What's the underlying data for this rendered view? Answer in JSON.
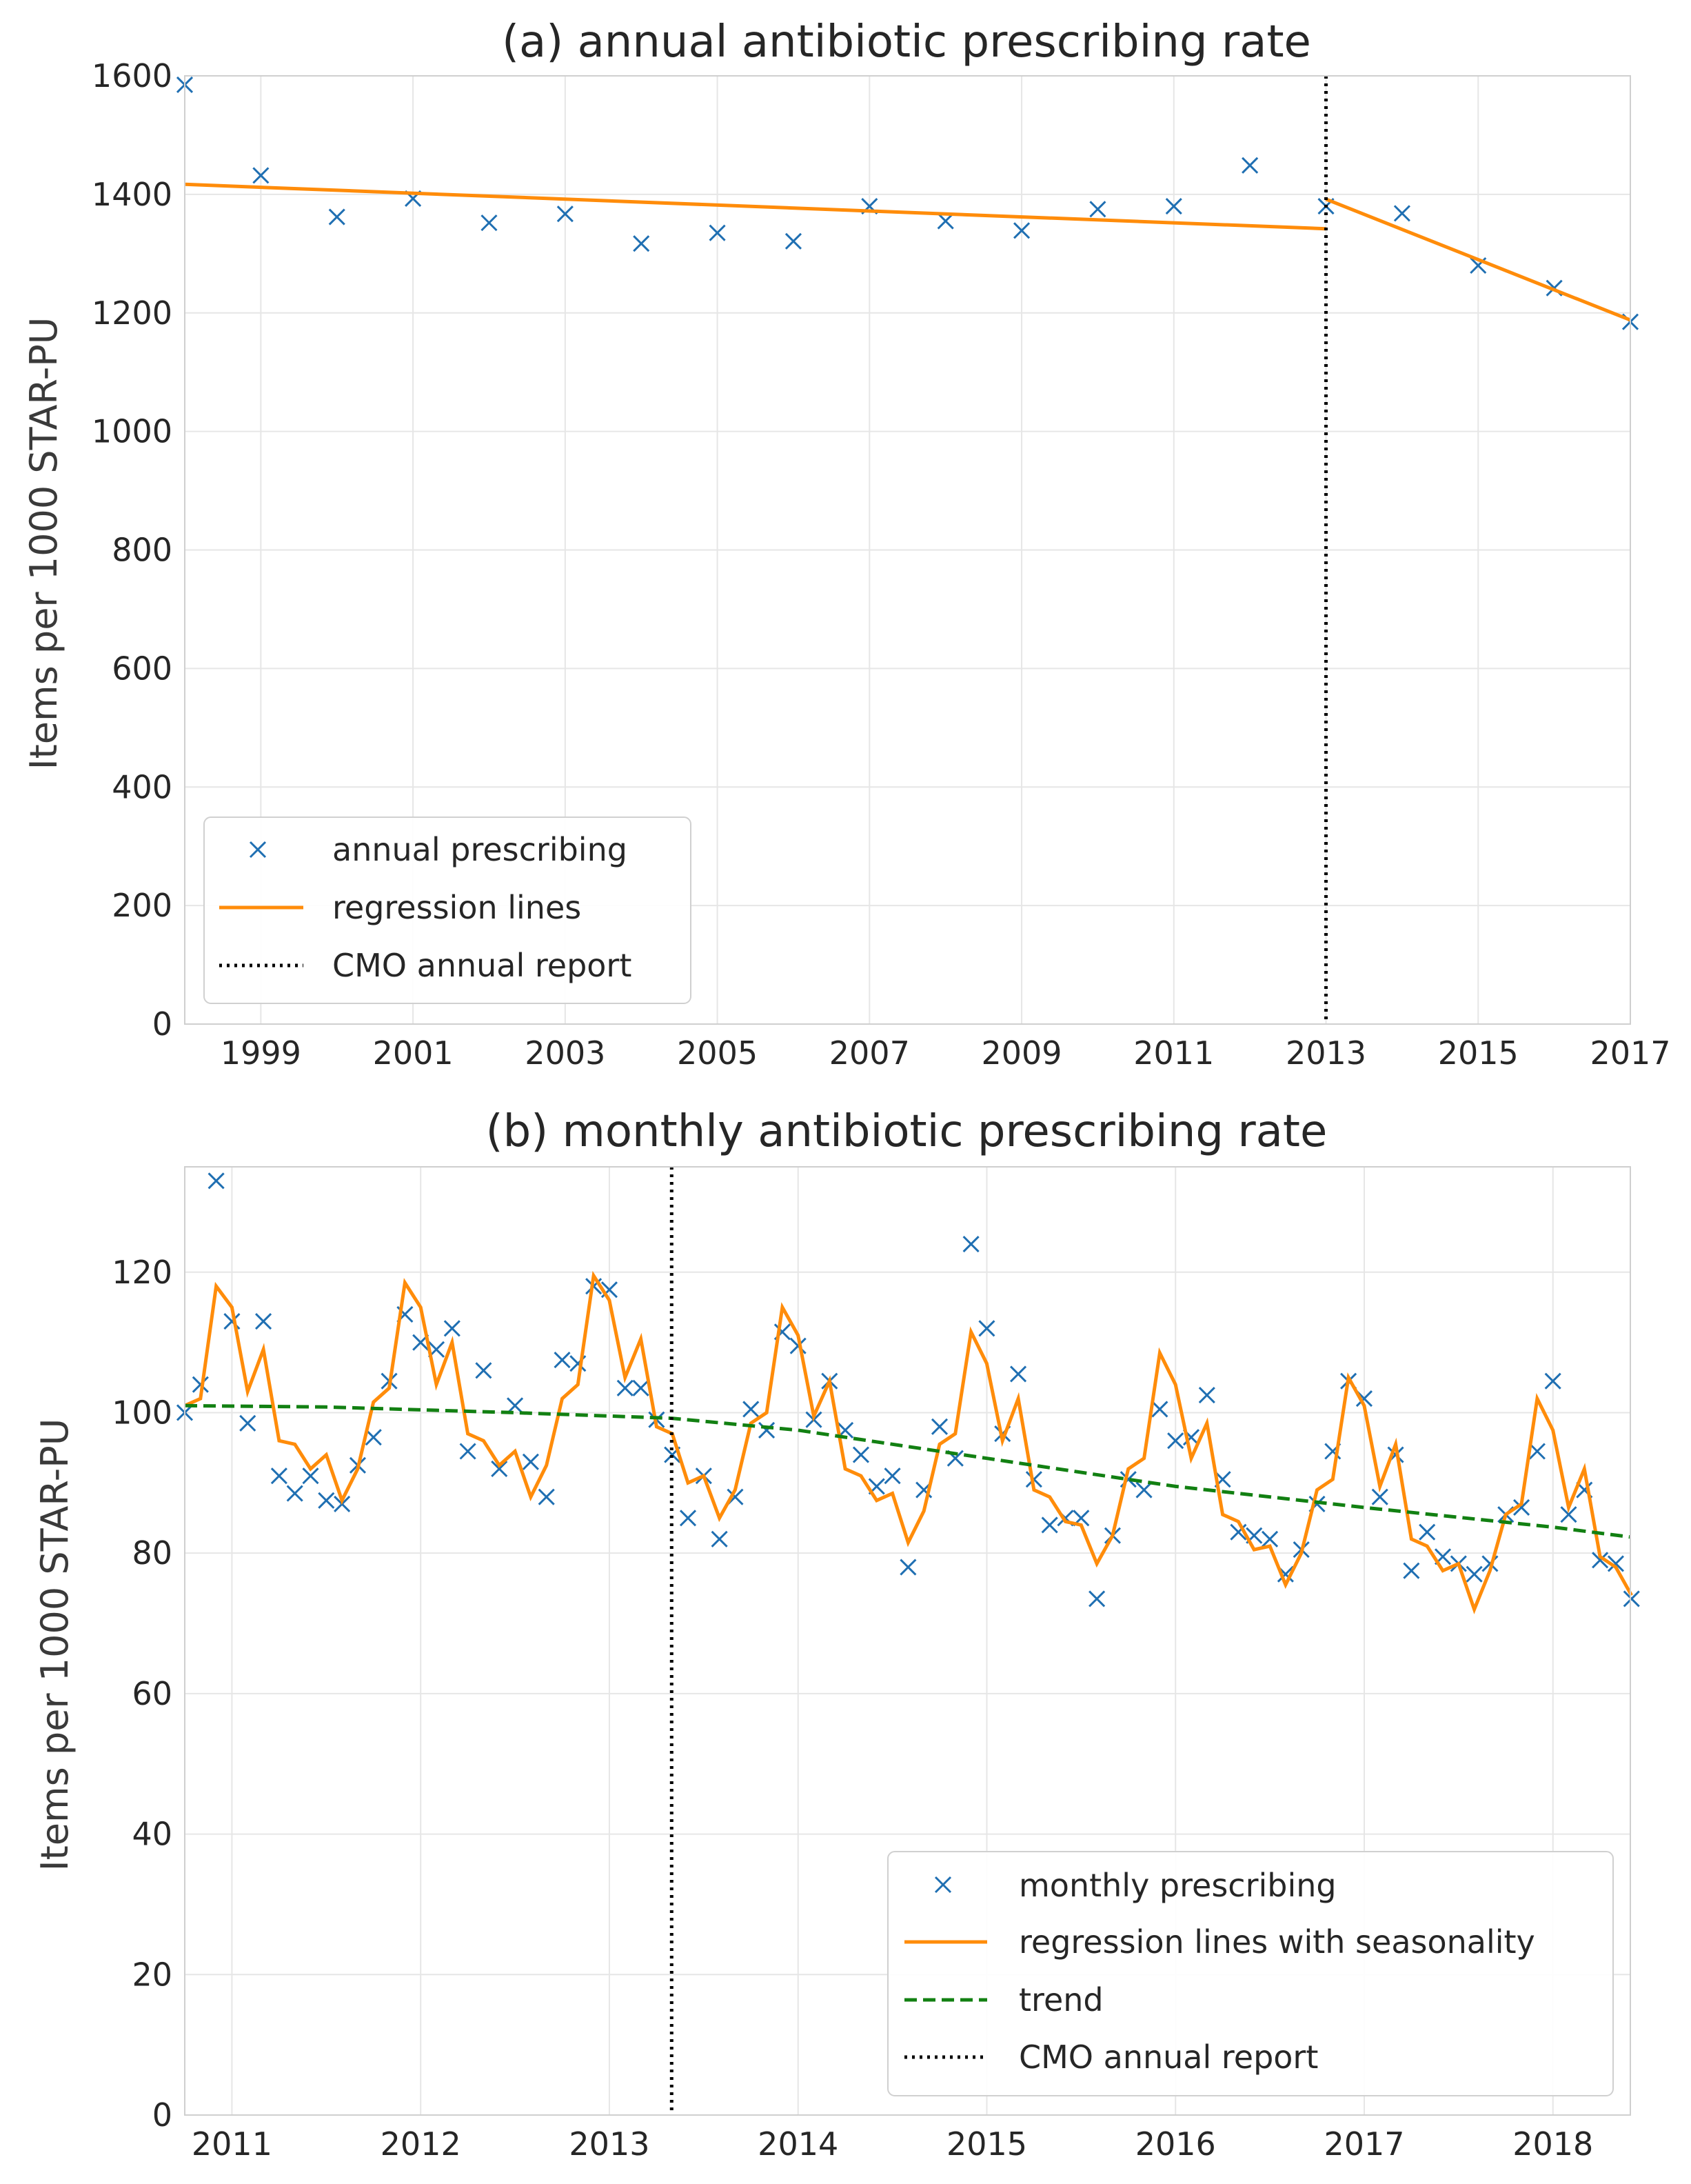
{
  "chart_data": [
    {
      "type": "scatter",
      "title": "(a) annual antibiotic prescribing rate",
      "xlabel": "",
      "ylabel": "Items per 1000 STAR-PU",
      "xlim": [
        1998,
        2017
      ],
      "ylim": [
        0,
        1600
      ],
      "xticks": [
        "1999",
        "2001",
        "2003",
        "2005",
        "2007",
        "2009",
        "2011",
        "2013",
        "2015",
        "2017"
      ],
      "yticks": [
        "0",
        "200",
        "400",
        "600",
        "800",
        "1000",
        "1200",
        "1400",
        "1600"
      ],
      "grid": true,
      "legend_position": "lower-left",
      "series": [
        {
          "name": "annual prescribing",
          "kind": "marker-x",
          "color": "#1f6fb2",
          "x": [
            1998,
            1999,
            2000,
            2001,
            2002,
            2003,
            2004,
            2005,
            2006,
            2007,
            2008,
            2009,
            2010,
            2011,
            2012,
            2013,
            2014,
            2015,
            2016,
            2017
          ],
          "y": [
            1585,
            1432,
            1362,
            1393,
            1352,
            1367,
            1317,
            1335,
            1321,
            1380,
            1355,
            1339,
            1375,
            1380,
            1449,
            1380,
            1368,
            1280,
            1242,
            1185
          ]
        },
        {
          "name": "regression lines",
          "kind": "line",
          "color": "#ff8c0a",
          "segments": [
            {
              "x": [
                1998,
                2013
              ],
              "y": [
                1417,
                1342
              ]
            },
            {
              "x": [
                2013,
                2017
              ],
              "y": [
                1392,
                1188
              ]
            }
          ]
        },
        {
          "name": "CMO annual report",
          "kind": "vline-dotted",
          "color": "#000000",
          "x": 2013
        }
      ]
    },
    {
      "type": "line",
      "title": "(b) monthly antibiotic prescribing rate",
      "xlabel": "",
      "ylabel": "Items per 1000 STAR-PU",
      "xlim": [
        2010.75,
        2018.41
      ],
      "ylim": [
        0,
        135
      ],
      "xticks": [
        "2011",
        "2012",
        "2013",
        "2014",
        "2015",
        "2016",
        "2017",
        "2018"
      ],
      "yticks": [
        "0",
        "20",
        "40",
        "60",
        "80",
        "100",
        "120"
      ],
      "grid": true,
      "legend_position": "lower-right",
      "series": [
        {
          "name": "monthly prescribing",
          "kind": "marker-x",
          "color": "#1f6fb2",
          "start": 2010.75,
          "step": 0.08333,
          "y": [
            100,
            104,
            133,
            113,
            98.5,
            113,
            91,
            88.5,
            91,
            87.5,
            87,
            92.5,
            96.5,
            104.5,
            114,
            110,
            109,
            112,
            94.5,
            106,
            92,
            101,
            93,
            88,
            107.5,
            107,
            118,
            117.5,
            103.5,
            103.5,
            99,
            94,
            85,
            91,
            82,
            88,
            100.5,
            97.5,
            111.5,
            109.5,
            99,
            104.5,
            97.5,
            94,
            89.5,
            91,
            78,
            89,
            98,
            93.5,
            124,
            112,
            97,
            105.5,
            90.5,
            84,
            85,
            85,
            73.5,
            82.5,
            90.5,
            89,
            100.5,
            96,
            96.5,
            102.5,
            90.5,
            83,
            82.5,
            82,
            77,
            80.5,
            87,
            94.5,
            104.5,
            102,
            88,
            94,
            77.5,
            83,
            79.5,
            78.5,
            77,
            78.5,
            85.5,
            86.5,
            94.5,
            104.5,
            85.5,
            89,
            79,
            78.5,
            73.5
          ]
        },
        {
          "name": "regression lines with seasonality",
          "kind": "line",
          "color": "#ff8c0a",
          "start": 2010.75,
          "step": 0.08333,
          "y": [
            101,
            102,
            118,
            115,
            103,
            109,
            96,
            95.5,
            92,
            94,
            87.5,
            92,
            101.5,
            103.5,
            118.5,
            115,
            104,
            110,
            97,
            96,
            92.5,
            94.5,
            88,
            92.5,
            102,
            104,
            119.5,
            116,
            105,
            110.5,
            98,
            97,
            90,
            91,
            85,
            89,
            98.5,
            100,
            115,
            111,
            99.5,
            104.5,
            92,
            91,
            87.5,
            88.5,
            81.5,
            86,
            95.5,
            97,
            111.5,
            107,
            96,
            102,
            89,
            88,
            84.5,
            84,
            78.5,
            82.5,
            92,
            93.5,
            108.5,
            104,
            93.5,
            98.5,
            85.5,
            84.5,
            80.5,
            81,
            75.5,
            80,
            89,
            90.5,
            105,
            101,
            89.5,
            95.5,
            82,
            81,
            77.5,
            78.5,
            72,
            77.5,
            85.5,
            87,
            102,
            97.5,
            86.5,
            92,
            79.5,
            78,
            74
          ]
        },
        {
          "name": "trend",
          "kind": "line-dashed",
          "color": "#128012",
          "x": [
            2010.75,
            2011.5,
            2012.5,
            2013.33,
            2014,
            2015,
            2016,
            2017,
            2018,
            2018.41
          ],
          "y": [
            101,
            100.8,
            100,
            99.2,
            97.5,
            93.5,
            89.5,
            86.5,
            83.7,
            82.3
          ]
        },
        {
          "name": "CMO annual report",
          "kind": "vline-dotted",
          "color": "#000000",
          "x": 2013.33
        }
      ]
    }
  ]
}
